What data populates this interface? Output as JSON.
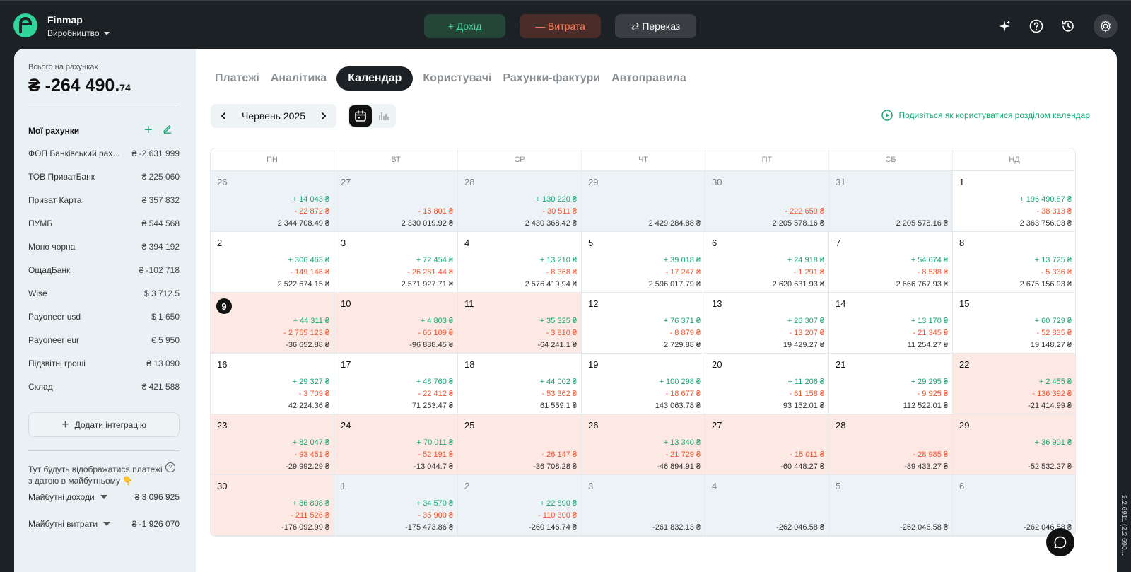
{
  "header": {
    "app_name": "Finmap",
    "workspace": "Виробництво",
    "income_label": "+ Дохід",
    "expense_label": "— Витрата",
    "transfer_label": "⇄ Переказ"
  },
  "sidebar": {
    "total_label": "Всього на рахунках",
    "total_main": "₴ -264 490.",
    "total_cents": "74",
    "accounts_title": "Мої рахунки",
    "accounts": [
      {
        "name": "ФОП Банківський рах...",
        "amount": "₴ -2 631 999"
      },
      {
        "name": "ТОВ ПриватБанк",
        "amount": "₴ 225 060"
      },
      {
        "name": "Приват Карта",
        "amount": "₴ 357 832"
      },
      {
        "name": "ПУМБ",
        "amount": "₴ 544 568"
      },
      {
        "name": "Моно чорна",
        "amount": "₴ 394 192"
      },
      {
        "name": "ОщадБанк",
        "amount": "₴ -102 718"
      },
      {
        "name": "Wise",
        "amount": "$ 3 712.5"
      },
      {
        "name": "Payoneer usd",
        "amount": "$ 1 650"
      },
      {
        "name": "Payoneer eur",
        "amount": "€ 5 950"
      },
      {
        "name": "Підзвітні гроші",
        "amount": "₴ 13 090"
      },
      {
        "name": "Склад",
        "amount": "₴ 421 588"
      }
    ],
    "add_integration": "Додати інтеграцію",
    "future_note": "Тут будуть відображатися платежі з датою в майбутньому 👇",
    "future_income_label": "Майбутні доходи",
    "future_income": "₴ 3 096 925",
    "future_expense_label": "Майбутні витрати",
    "future_expense": "₴ -1 926 070"
  },
  "tabs": [
    "Платежі",
    "Аналітика",
    "Календар",
    "Користувачі",
    "Рахунки-фактури",
    "Автоправила"
  ],
  "active_tab": 2,
  "calendar": {
    "month": "Червень 2025",
    "howto": "Подивіться як користуватися розділом календар",
    "weekdays": [
      "ПН",
      "ВТ",
      "СР",
      "ЧТ",
      "ПТ",
      "СБ",
      "НД"
    ],
    "days": [
      {
        "d": "26",
        "type": "other",
        "inc": "+ 14 043 ₴",
        "exp": "- 22 872 ₴",
        "bal": "2 344 708.49 ₴"
      },
      {
        "d": "27",
        "type": "other",
        "inc": "",
        "exp": "- 15 801 ₴",
        "bal": "2 330 019.92 ₴"
      },
      {
        "d": "28",
        "type": "other",
        "inc": "+ 130 220 ₴",
        "exp": "- 30 511 ₴",
        "bal": "2 430 368.42 ₴"
      },
      {
        "d": "29",
        "type": "other",
        "inc": "",
        "exp": "",
        "bal": "2 429 284.88 ₴"
      },
      {
        "d": "30",
        "type": "other",
        "inc": "",
        "exp": "- 222 659 ₴",
        "bal": "2 205 578.16 ₴"
      },
      {
        "d": "31",
        "type": "other",
        "inc": "",
        "exp": "",
        "bal": "2 205 578.16 ₴"
      },
      {
        "d": "1",
        "type": "normal",
        "inc": "+ 196 490.87 ₴",
        "exp": "- 38 313 ₴",
        "bal": "2 363 756.03 ₴"
      },
      {
        "d": "2",
        "type": "normal",
        "inc": "+ 306 463 ₴",
        "exp": "- 149 146 ₴",
        "bal": "2 522 674.15 ₴"
      },
      {
        "d": "3",
        "type": "normal",
        "inc": "+ 72 454 ₴",
        "exp": "- 26 281.44 ₴",
        "bal": "2 571 927.71 ₴"
      },
      {
        "d": "4",
        "type": "normal",
        "inc": "+ 13 210 ₴",
        "exp": "- 8 368 ₴",
        "bal": "2 576 419.94 ₴"
      },
      {
        "d": "5",
        "type": "normal",
        "inc": "+ 39 018 ₴",
        "exp": "- 17 247 ₴",
        "bal": "2 596 017.79 ₴"
      },
      {
        "d": "6",
        "type": "normal",
        "inc": "+ 24 918 ₴",
        "exp": "- 1 291 ₴",
        "bal": "2 620 631.93 ₴"
      },
      {
        "d": "7",
        "type": "normal",
        "inc": "+ 54 674 ₴",
        "exp": "- 8 538 ₴",
        "bal": "2 666 767.93 ₴"
      },
      {
        "d": "8",
        "type": "normal",
        "inc": "+ 13 725 ₴",
        "exp": "- 5 336 ₴",
        "bal": "2 675 156.93 ₴"
      },
      {
        "d": "9",
        "type": "neg",
        "today": true,
        "inc": "+ 44 311 ₴",
        "exp": "- 2 755 123 ₴",
        "bal": "-36 652.88 ₴"
      },
      {
        "d": "10",
        "type": "neg",
        "inc": "+ 4 803 ₴",
        "exp": "- 66 109 ₴",
        "bal": "-96 888.45 ₴"
      },
      {
        "d": "11",
        "type": "neg",
        "inc": "+ 35 325 ₴",
        "exp": "- 3 810 ₴",
        "bal": "-64 241.1 ₴"
      },
      {
        "d": "12",
        "type": "normal",
        "inc": "+ 76 371 ₴",
        "exp": "- 8 879 ₴",
        "bal": "2 729.88 ₴"
      },
      {
        "d": "13",
        "type": "normal",
        "inc": "+ 26 307 ₴",
        "exp": "- 13 207 ₴",
        "bal": "19 429.27 ₴"
      },
      {
        "d": "14",
        "type": "normal",
        "inc": "+ 13 170 ₴",
        "exp": "- 21 345 ₴",
        "bal": "11 254.27 ₴"
      },
      {
        "d": "15",
        "type": "normal",
        "inc": "+ 60 729 ₴",
        "exp": "- 52 835 ₴",
        "bal": "19 148.27 ₴"
      },
      {
        "d": "16",
        "type": "normal",
        "inc": "+ 29 327 ₴",
        "exp": "- 3 709 ₴",
        "bal": "42 224.36 ₴"
      },
      {
        "d": "17",
        "type": "normal",
        "inc": "+ 48 760 ₴",
        "exp": "- 22 412 ₴",
        "bal": "71 253.47 ₴"
      },
      {
        "d": "18",
        "type": "normal",
        "inc": "+ 44 002 ₴",
        "exp": "- 53 362 ₴",
        "bal": "61 559.1 ₴"
      },
      {
        "d": "19",
        "type": "normal",
        "inc": "+ 100 298 ₴",
        "exp": "- 18 677 ₴",
        "bal": "143 063.78 ₴"
      },
      {
        "d": "20",
        "type": "normal",
        "inc": "+ 11 206 ₴",
        "exp": "- 61 158 ₴",
        "bal": "93 152.01 ₴"
      },
      {
        "d": "21",
        "type": "normal",
        "inc": "+ 29 295 ₴",
        "exp": "- 9 925 ₴",
        "bal": "112 522.01 ₴"
      },
      {
        "d": "22",
        "type": "neg",
        "inc": "+ 2 455 ₴",
        "exp": "- 136 392 ₴",
        "bal": "-21 414.99 ₴"
      },
      {
        "d": "23",
        "type": "neg",
        "inc": "+ 82 047 ₴",
        "exp": "- 93 451 ₴",
        "bal": "-29 992.29 ₴"
      },
      {
        "d": "24",
        "type": "neg",
        "inc": "+ 70 011 ₴",
        "exp": "- 52 191 ₴",
        "bal": "-13 044.7 ₴"
      },
      {
        "d": "25",
        "type": "neg",
        "inc": "",
        "exp": "- 26 147 ₴",
        "bal": "-36 708.28 ₴"
      },
      {
        "d": "26",
        "type": "neg",
        "inc": "+ 13 340 ₴",
        "exp": "- 21 729 ₴",
        "bal": "-46 894.91 ₴"
      },
      {
        "d": "27",
        "type": "neg",
        "inc": "",
        "exp": "- 15 011 ₴",
        "bal": "-60 448.27 ₴"
      },
      {
        "d": "28",
        "type": "neg",
        "inc": "",
        "exp": "- 28 985 ₴",
        "bal": "-89 433.27 ₴"
      },
      {
        "d": "29",
        "type": "neg",
        "inc": "+ 36 901 ₴",
        "exp": "",
        "bal": "-52 532.27 ₴"
      },
      {
        "d": "30",
        "type": "neg",
        "inc": "+ 86 808 ₴",
        "exp": "- 211 526 ₴",
        "bal": "-176 092.99 ₴"
      },
      {
        "d": "1",
        "type": "other",
        "inc": "+ 34 570 ₴",
        "exp": "- 35 900 ₴",
        "bal": "-175 473.86 ₴"
      },
      {
        "d": "2",
        "type": "other",
        "inc": "+ 22 890 ₴",
        "exp": "- 110 300 ₴",
        "bal": "-260 146.74 ₴"
      },
      {
        "d": "3",
        "type": "other",
        "inc": "",
        "exp": "",
        "bal": "-261 832.13 ₴"
      },
      {
        "d": "4",
        "type": "other",
        "inc": "",
        "exp": "",
        "bal": "-262 046.58 ₴"
      },
      {
        "d": "5",
        "type": "other",
        "inc": "",
        "exp": "",
        "bal": "-262 046.58 ₴"
      },
      {
        "d": "6",
        "type": "other",
        "inc": "",
        "exp": "",
        "bal": "-262 046.58 ₴"
      }
    ]
  },
  "version": "2.2.6911 (2.2.690...",
  "colors": {
    "income": "#1aa672",
    "expense": "#f0552e",
    "negative_day_bg": "#fce9e4",
    "other_month_bg": "#ecf2f5"
  }
}
